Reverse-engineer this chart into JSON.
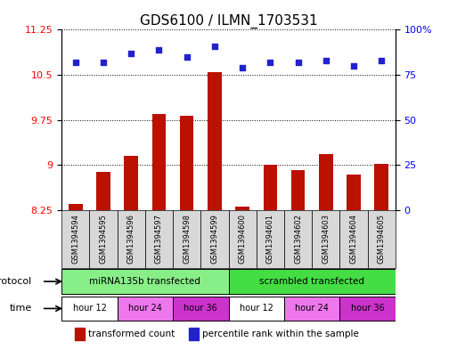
{
  "title": "GDS6100 / ILMN_1703531",
  "samples": [
    "GSM1394594",
    "GSM1394595",
    "GSM1394596",
    "GSM1394597",
    "GSM1394598",
    "GSM1394599",
    "GSM1394600",
    "GSM1394601",
    "GSM1394602",
    "GSM1394603",
    "GSM1394604",
    "GSM1394605"
  ],
  "bar_values": [
    8.35,
    8.88,
    9.15,
    9.85,
    9.82,
    10.55,
    8.3,
    9.0,
    8.92,
    9.18,
    8.84,
    9.02
  ],
  "dot_values": [
    82,
    82,
    87,
    89,
    85,
    91,
    79,
    82,
    82,
    83,
    80,
    83
  ],
  "ylim_left": [
    8.25,
    11.25
  ],
  "ylim_right": [
    0,
    100
  ],
  "yticks_left": [
    8.25,
    9.0,
    9.75,
    10.5,
    11.25
  ],
  "ytick_labels_left": [
    "8.25",
    "9",
    "9.75",
    "10.5",
    "11.25"
  ],
  "yticks_right": [
    0,
    25,
    50,
    75,
    100
  ],
  "ytick_labels_right": [
    "0",
    "25",
    "50",
    "75",
    "100%"
  ],
  "bar_color": "#bb1100",
  "dot_color": "#2222cc",
  "background_color": "#ffffff",
  "protocol_groups": [
    {
      "label": "miRNA135b transfected",
      "start": 0,
      "end": 6,
      "color": "#88ee88"
    },
    {
      "label": "scrambled transfected",
      "start": 6,
      "end": 12,
      "color": "#44dd44"
    }
  ],
  "time_groups": [
    {
      "label": "hour 12",
      "start": 0,
      "end": 2,
      "color": "#ffffff"
    },
    {
      "label": "hour 24",
      "start": 2,
      "end": 4,
      "color": "#ee77ee"
    },
    {
      "label": "hour 36",
      "start": 4,
      "end": 6,
      "color": "#cc33cc"
    },
    {
      "label": "hour 12",
      "start": 6,
      "end": 8,
      "color": "#ffffff"
    },
    {
      "label": "hour 24",
      "start": 8,
      "end": 10,
      "color": "#ee77ee"
    },
    {
      "label": "hour 36",
      "start": 10,
      "end": 12,
      "color": "#cc33cc"
    }
  ],
  "legend_items": [
    {
      "label": "transformed count",
      "color": "#bb1100",
      "marker": "s"
    },
    {
      "label": "percentile rank within the sample",
      "color": "#2222cc",
      "marker": "s"
    }
  ],
  "protocol_label": "protocol",
  "time_label": "time",
  "title_fontsize": 11,
  "tick_fontsize": 8,
  "sample_fontsize": 6,
  "label_fontsize": 8,
  "gray_bg": "#d8d8d8"
}
